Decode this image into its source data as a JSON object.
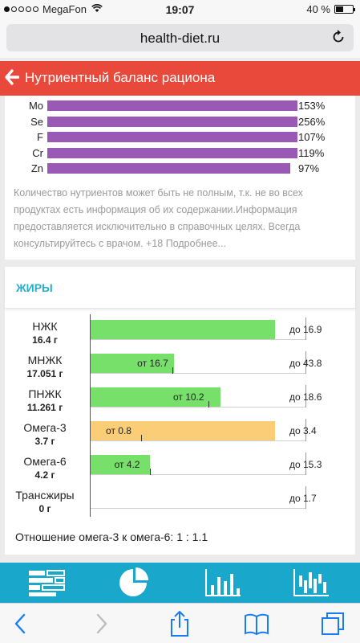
{
  "status_bar": {
    "carrier": "MegaFon",
    "time": "19:07",
    "battery": "40 %",
    "battery_fraction": 0.4
  },
  "browser": {
    "url": "health-diet.ru"
  },
  "header": {
    "title": "Нутриентный баланс рациона"
  },
  "minerals": [
    {
      "label": "Mo",
      "value": "153%",
      "fill": 1.0
    },
    {
      "label": "Se",
      "value": "256%",
      "fill": 1.0
    },
    {
      "label": "F",
      "value": "107%",
      "fill": 1.0
    },
    {
      "label": "Cr",
      "value": "119%",
      "fill": 1.0
    },
    {
      "label": "Zn",
      "value": "97%",
      "fill": 0.97
    }
  ],
  "disclaimer": "Количество нутриентов может быть не полным, т.к. не во всех продуктах есть информация об их содержании.Информация предоставляется исключительно в справочных целях. Всегда консультируйтесь с врачом. +18 Подробнее...",
  "fats": {
    "title": "ЖИРЫ",
    "rows": [
      {
        "name": "НЖК",
        "amount": "16.4 г",
        "value": 16.4,
        "min": null,
        "max": 16.9,
        "min_label": "",
        "max_label": "до 16.9",
        "color": "#77e06a"
      },
      {
        "name": "МНЖК",
        "amount": "17.051 г",
        "value": 17.051,
        "min": 16.7,
        "max": 43.8,
        "min_label": "от 16.7",
        "max_label": "до 43.8",
        "color": "#77e06a"
      },
      {
        "name": "ПНЖК",
        "amount": "11.261 г",
        "value": 11.261,
        "min": 10.2,
        "max": 18.6,
        "min_label": "от 10.2",
        "max_label": "до 18.6",
        "color": "#77e06a"
      },
      {
        "name": "Омега-3",
        "amount": "3.7 г",
        "value": 3.7,
        "min": 0.8,
        "max": 3.4,
        "min_label": "от 0.8",
        "max_label": "до 3.4",
        "color": "#fbcd76"
      },
      {
        "name": "Омега-6",
        "amount": "4.2 г",
        "value": 4.2,
        "min": 4.2,
        "max": 15.3,
        "min_label": "от 4.2",
        "max_label": "до 15.3",
        "color": "#77e06a"
      },
      {
        "name": "Трансжиры",
        "amount": "0 г",
        "value": 0,
        "min": null,
        "max": 1.7,
        "min_label": "",
        "max_label": "до 1.7",
        "color": "#77e06a"
      }
    ],
    "ratio_text": "Отношение омега-3 к омега-6: 1 : 1.1"
  },
  "tabs": [
    "table-icon",
    "pie-chart-icon",
    "bar-chart-icon",
    "histogram-icon"
  ],
  "colors": {
    "header": "#e8493b",
    "accent": "#27aecd",
    "tabbar": "#19a7cc",
    "mineral_bar": "#9b59b6"
  }
}
